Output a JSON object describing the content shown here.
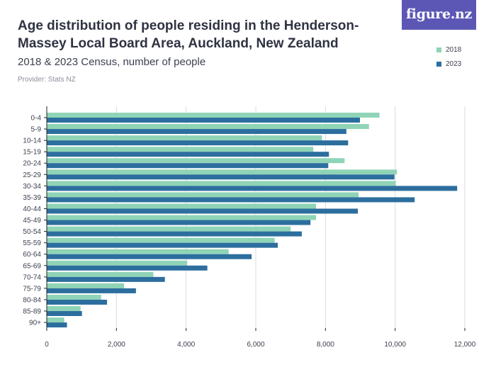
{
  "header": {
    "title": "Age distribution of people residing in the Henderson-Massey Local Board Area, Auckland, New Zealand",
    "subtitle": "2018 & 2023 Census, number of people",
    "provider": "Provider: Stats NZ",
    "logo": "figure.nz"
  },
  "colors": {
    "series_2018": "#8fd4b6",
    "series_2023": "#2c6e9e",
    "grid": "#d8dbe0",
    "axis": "#222222"
  },
  "chart_data": {
    "type": "bar",
    "orientation": "horizontal",
    "categories": [
      "0-4",
      "5-9",
      "10-14",
      "15-19",
      "20-24",
      "25-29",
      "30-34",
      "35-39",
      "40-44",
      "45-49",
      "50-54",
      "55-59",
      "60-64",
      "65-69",
      "70-74",
      "75-79",
      "80-84",
      "85-89",
      "90+"
    ],
    "series": [
      {
        "name": "2018",
        "values": [
          9550,
          9250,
          7900,
          7650,
          8550,
          10050,
          10020,
          8950,
          7730,
          7730,
          7000,
          6540,
          5220,
          4030,
          3060,
          2220,
          1560,
          970,
          500
        ]
      },
      {
        "name": "2023",
        "values": [
          8990,
          8600,
          8650,
          8100,
          8080,
          9980,
          11780,
          10560,
          8930,
          7570,
          7320,
          6630,
          5880,
          4610,
          3390,
          2560,
          1730,
          1010,
          580
        ]
      }
    ],
    "xlim": [
      0,
      12000
    ],
    "xticks": [
      0,
      2000,
      4000,
      6000,
      8000,
      10000,
      12000
    ],
    "xtick_labels": [
      "0",
      "2,000",
      "4,000",
      "6,000",
      "8,000",
      "10,000",
      "12,000"
    ],
    "xlabel": "",
    "ylabel": "",
    "grid": "vertical",
    "legend": {
      "position": "top-right",
      "entries": [
        "2018",
        "2023"
      ]
    }
  }
}
